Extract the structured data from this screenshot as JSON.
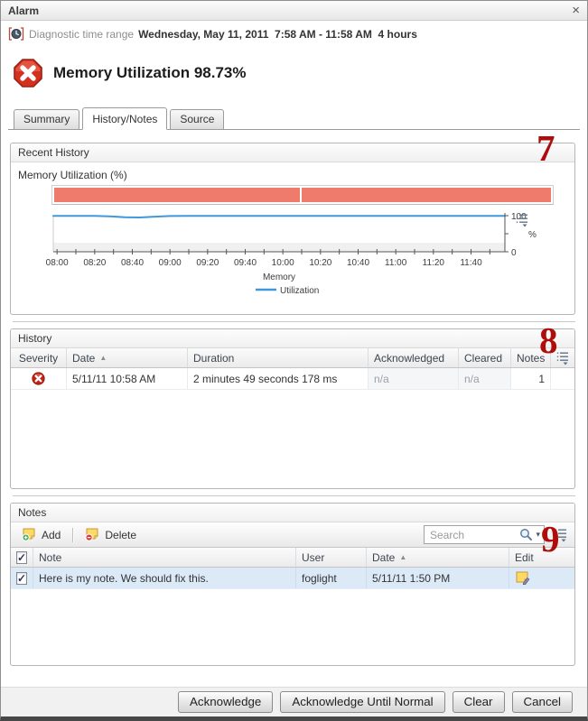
{
  "window": {
    "title": "Alarm"
  },
  "icons": {
    "close": "×",
    "check": "✓",
    "sort_asc": "▲",
    "search_caret": "▾"
  },
  "time_range": {
    "label": "Diagnostic time range",
    "value": "Wednesday, May 11, 2011  7:58 AM - 11:58 AM  4 hours"
  },
  "alarm": {
    "title": "Memory Utilization 98.73%",
    "severity": "fatal"
  },
  "tabs": [
    {
      "label": "Summary",
      "active": false
    },
    {
      "label": "History/Notes",
      "active": true
    },
    {
      "label": "Source",
      "active": false
    }
  ],
  "callouts": {
    "recent_history": "7",
    "history": "8",
    "notes": "9",
    "color": "#ae0d0c"
  },
  "recent_history": {
    "panel_title": "Recent History",
    "chart_title": "Memory Utilization (%)",
    "severity_bar": {
      "color": "#ee7b6c",
      "segments_pct": [
        49.7,
        50.3
      ]
    }
  },
  "chart_data": {
    "type": "line",
    "title": "Memory Utilization (%)",
    "x_range": [
      "07:58",
      "11:58"
    ],
    "x_ticks": [
      "08:00",
      "08:20",
      "08:40",
      "09:00",
      "09:20",
      "09:40",
      "10:00",
      "10:20",
      "10:40",
      "11:00",
      "11:20",
      "11:40"
    ],
    "ylim": [
      0,
      100
    ],
    "y_ticks": [
      0,
      50,
      100
    ],
    "ylabel": "%",
    "legend": [
      "Memory",
      "Utilization"
    ],
    "grid": false,
    "legend_position": "bottom-center",
    "series": [
      {
        "name": "Memory Utilization",
        "color": "#3f98dc",
        "points": [
          [
            "07:58",
            99.4
          ],
          [
            "08:10",
            99.4
          ],
          [
            "08:20",
            99.2
          ],
          [
            "08:28",
            98.3
          ],
          [
            "08:36",
            95.4
          ],
          [
            "08:44",
            94.9
          ],
          [
            "08:52",
            97.2
          ],
          [
            "09:00",
            99.0
          ],
          [
            "09:10",
            99.4
          ],
          [
            "09:40",
            99.4
          ],
          [
            "10:20",
            99.4
          ],
          [
            "10:58",
            99.5
          ],
          [
            "11:30",
            99.4
          ],
          [
            "11:58",
            99.4
          ]
        ]
      }
    ]
  },
  "history": {
    "panel_title": "History",
    "columns": [
      "Severity",
      "Date",
      "Duration",
      "Acknowledged",
      "Cleared",
      "Notes"
    ],
    "sorted_by": "Date",
    "rows": [
      {
        "severity": "fatal",
        "date": "5/11/11 10:58 AM",
        "duration": "2 minutes 49 seconds 178 ms",
        "acknowledged": "n/a",
        "cleared": "n/a",
        "notes": "1"
      }
    ]
  },
  "notes": {
    "panel_title": "Notes",
    "toolbar": {
      "add_label": "Add",
      "delete_label": "Delete",
      "search_placeholder": "Search"
    },
    "columns": [
      "Note",
      "User",
      "Date",
      "Edit"
    ],
    "rows": [
      {
        "checked": true,
        "note": "Here is my note. We should fix this.",
        "user": "foglight",
        "date": "5/11/11 1:50 PM"
      }
    ]
  },
  "footer": {
    "buttons": [
      "Acknowledge",
      "Acknowledge Until Normal",
      "Clear",
      "Cancel"
    ]
  }
}
